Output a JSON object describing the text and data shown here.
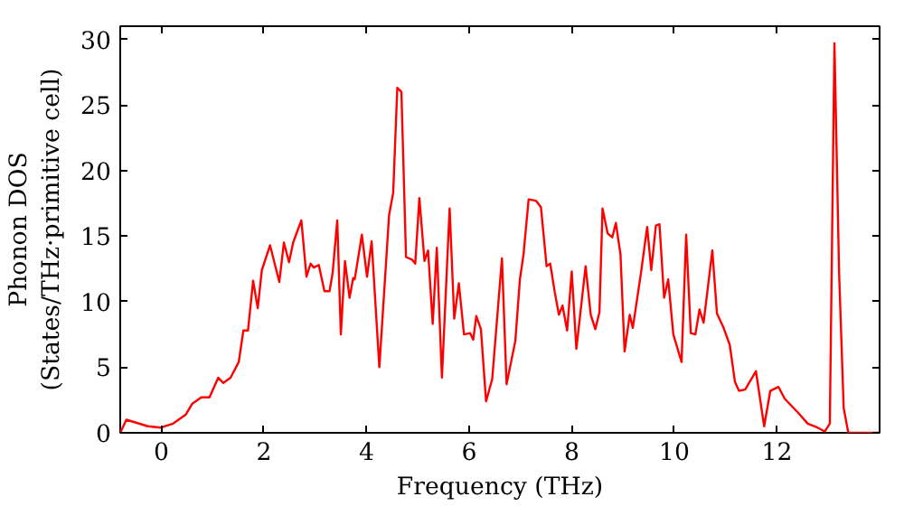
{
  "chart_data": {
    "type": "line",
    "xlabel": "Frequency (THz)",
    "ylabel": "Phonon DOS\n(States/THz·primitive cell)",
    "xlim": [
      -0.8,
      14.0
    ],
    "ylim": [
      0,
      31
    ],
    "xticks": [
      0,
      2,
      4,
      6,
      8,
      10,
      12
    ],
    "yticks": [
      0,
      5,
      10,
      15,
      20,
      25,
      30
    ],
    "grid": false,
    "series": [
      {
        "color": "#ff0000",
        "x": [
          -0.8,
          -0.68,
          -0.26,
          -0.01,
          0.23,
          0.48,
          0.6,
          0.78,
          0.94,
          1.11,
          1.21,
          1.35,
          1.51,
          1.6,
          1.69,
          1.79,
          1.88,
          1.96,
          2.12,
          2.3,
          2.39,
          2.49,
          2.57,
          2.73,
          2.83,
          2.91,
          2.97,
          3.07,
          3.18,
          3.28,
          3.34,
          3.43,
          3.5,
          3.58,
          3.67,
          3.74,
          3.77,
          3.91,
          4.01,
          4.1,
          4.25,
          4.44,
          4.52,
          4.6,
          4.68,
          4.77,
          4.89,
          4.95,
          5.03,
          5.13,
          5.2,
          5.29,
          5.37,
          5.47,
          5.62,
          5.71,
          5.8,
          5.9,
          6.02,
          6.08,
          6.14,
          6.23,
          6.33,
          6.45,
          6.64,
          6.73,
          6.9,
          6.99,
          7.06,
          7.16,
          7.3,
          7.4,
          7.51,
          7.58,
          7.67,
          7.75,
          7.82,
          7.91,
          8.0,
          8.09,
          8.27,
          8.37,
          8.46,
          8.54,
          8.6,
          8.7,
          8.79,
          8.86,
          8.95,
          9.03,
          9.13,
          9.19,
          9.35,
          9.47,
          9.55,
          9.64,
          9.71,
          9.8,
          9.88,
          9.98,
          10.14,
          10.23,
          10.32,
          10.41,
          10.49,
          10.57,
          10.74,
          10.83,
          10.96,
          11.08,
          11.18,
          11.26,
          11.38,
          11.59,
          11.75,
          11.87,
          12.03,
          12.15,
          12.42,
          12.6,
          12.79,
          12.93,
          13.03,
          13.12,
          13.21,
          13.3,
          13.39,
          14.0
        ],
        "values": [
          0,
          1.0,
          0.5,
          0.4,
          0.7,
          1.4,
          2.2,
          2.7,
          2.7,
          4.2,
          3.8,
          4.2,
          5.4,
          7.8,
          7.8,
          11.6,
          9.5,
          12.4,
          14.3,
          11.5,
          14.5,
          13.0,
          14.5,
          16.2,
          11.9,
          12.9,
          12.6,
          12.8,
          10.8,
          10.8,
          12.2,
          16.2,
          7.5,
          13.1,
          10.3,
          11.8,
          11.7,
          15.1,
          11.9,
          14.6,
          5.0,
          16.6,
          18.3,
          26.3,
          26.0,
          13.4,
          13.2,
          12.9,
          17.9,
          13.1,
          13.9,
          8.3,
          14.1,
          4.2,
          17.1,
          8.7,
          11.4,
          7.5,
          7.6,
          7.1,
          8.9,
          7.9,
          2.4,
          4.1,
          13.3,
          3.7,
          7.0,
          11.7,
          13.6,
          17.8,
          17.7,
          17.2,
          12.7,
          12.9,
          10.7,
          9.0,
          9.7,
          7.8,
          12.3,
          6.4,
          12.7,
          9.0,
          7.9,
          9.2,
          17.1,
          15.2,
          14.9,
          16.0,
          13.6,
          6.2,
          9.0,
          8.0,
          12.2,
          15.7,
          12.4,
          15.8,
          15.9,
          10.3,
          11.7,
          7.5,
          5.4,
          15.1,
          7.6,
          7.5,
          9.4,
          8.4,
          13.9,
          9.1,
          8.0,
          6.7,
          3.9,
          3.2,
          3.3,
          4.7,
          0.5,
          3.2,
          3.5,
          2.6,
          1.5,
          0.7,
          0.4,
          0.1,
          0.7,
          29.7,
          12.3,
          1.9,
          0,
          0
        ]
      }
    ]
  }
}
